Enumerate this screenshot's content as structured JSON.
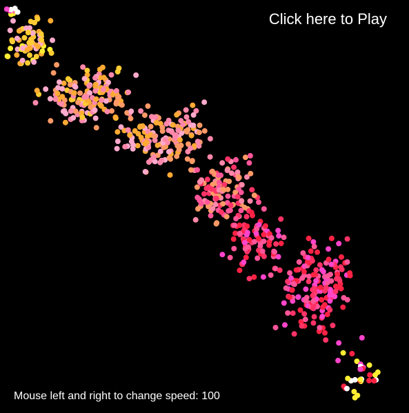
{
  "game": {
    "play_label": "Click here to Play",
    "speed_prefix": "Mouse left and right to change speed:",
    "speed_value": "100"
  },
  "colors": {
    "background": "#000000",
    "text": "#ffffff",
    "particle_palette": [
      "#ffee33",
      "#ffcc33",
      "#ffaa33",
      "#ff9966",
      "#ffaacc",
      "#ff88aa",
      "#ff5599",
      "#ff3366",
      "#ff2244",
      "#ff44cc",
      "#ffffff"
    ]
  }
}
